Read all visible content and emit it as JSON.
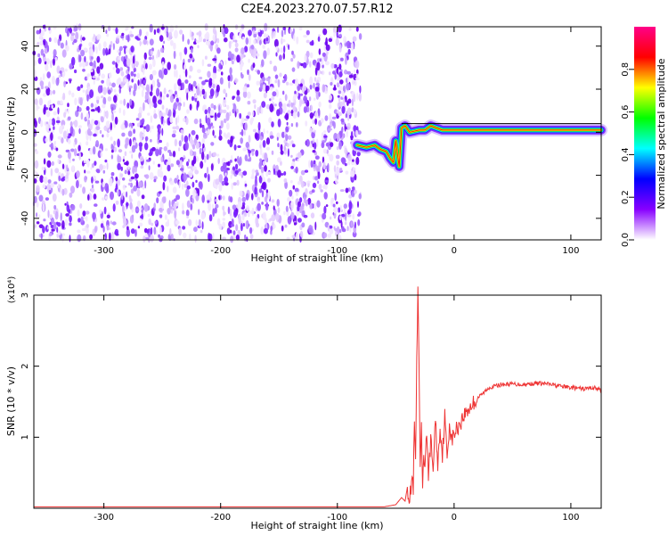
{
  "title": "C2E4.2023.270.07.57.R12",
  "chart_data": [
    {
      "type": "heatmap",
      "title": "C2E4.2023.270.07.57.R12",
      "xlabel": "Height of straight line (km)",
      "ylabel": "Frequency (Hz)",
      "xlim": [
        -360,
        126
      ],
      "ylim": [
        -50,
        49
      ],
      "x_ticks": [
        "-300",
        "-200",
        "-100",
        "0",
        "100"
      ],
      "y_ticks": [
        "-40",
        "-20",
        "0",
        "20",
        "40"
      ],
      "noise_region_x": [
        -360,
        -80
      ],
      "signal_track": [
        {
          "x": -83,
          "y": -6
        },
        {
          "x": -75,
          "y": -7
        },
        {
          "x": -68,
          "y": -6
        },
        {
          "x": -63,
          "y": -8
        },
        {
          "x": -58,
          "y": -9
        },
        {
          "x": -55,
          "y": -12
        },
        {
          "x": -52,
          "y": -14
        },
        {
          "x": -50,
          "y": -4
        },
        {
          "x": -47,
          "y": -16
        },
        {
          "x": -45,
          "y": 2
        },
        {
          "x": -42,
          "y": 3
        },
        {
          "x": -38,
          "y": 0
        },
        {
          "x": -30,
          "y": 1
        },
        {
          "x": -25,
          "y": 1
        },
        {
          "x": -20,
          "y": 3
        },
        {
          "x": -10,
          "y": 1
        },
        {
          "x": 0,
          "y": 1
        },
        {
          "x": 20,
          "y": 1
        },
        {
          "x": 50,
          "y": 1
        },
        {
          "x": 80,
          "y": 1
        },
        {
          "x": 100,
          "y": 1
        },
        {
          "x": 126,
          "y": 1
        }
      ],
      "colorbar": {
        "label": "Normalized spectral amplitude",
        "range": [
          0,
          1
        ],
        "ticks": [
          "0.0",
          "0.2",
          "0.4",
          "0.6",
          "0.8"
        ],
        "colormap": [
          "#ffffff",
          "#8800ff",
          "#0000ff",
          "#00ffff",
          "#00ff00",
          "#ffff00",
          "#ff0000",
          "#ff0088"
        ]
      },
      "grid": false
    },
    {
      "type": "line",
      "xlabel": "Height of straight line (km)",
      "ylabel": "SNR (10 * v/v)",
      "y_scale_label": "(x10⁴)",
      "xlim": [
        -360,
        126
      ],
      "ylim": [
        0,
        3
      ],
      "x_ticks": [
        "-300",
        "-200",
        "-100",
        "0",
        "100"
      ],
      "y_ticks": [
        "1",
        "2",
        "3"
      ],
      "series_color": "#ee3333",
      "series": [
        {
          "x": [
            -360,
            -300,
            -200,
            -100,
            -60,
            -50,
            -45,
            -42,
            -40,
            -38,
            -36,
            -35,
            -34,
            -33,
            -32,
            -31,
            -30,
            -29,
            -28,
            -27,
            -26,
            -25,
            -24,
            -22,
            -20,
            -18,
            -16,
            -14,
            -12,
            -10,
            -8,
            -6,
            -4,
            -2,
            0,
            5,
            10,
            15,
            20,
            25,
            30,
            40,
            50,
            60,
            70,
            80,
            90,
            100,
            110,
            120,
            126
          ],
          "y": [
            0.02,
            0.02,
            0.02,
            0.02,
            0.02,
            0.05,
            0.15,
            0.1,
            0.3,
            0.12,
            0.45,
            0.25,
            1.2,
            0.6,
            2.1,
            3.0,
            1.9,
            0.55,
            1.1,
            0.3,
            0.85,
            0.5,
            1.05,
            0.5,
            0.95,
            0.55,
            1.25,
            0.6,
            1.15,
            0.75,
            1.3,
            0.7,
            1.2,
            0.95,
            1.05,
            1.2,
            1.35,
            1.45,
            1.55,
            1.62,
            1.7,
            1.74,
            1.75,
            1.74,
            1.76,
            1.75,
            1.72,
            1.7,
            1.68,
            1.7,
            1.66
          ]
        }
      ],
      "grid": false
    }
  ]
}
